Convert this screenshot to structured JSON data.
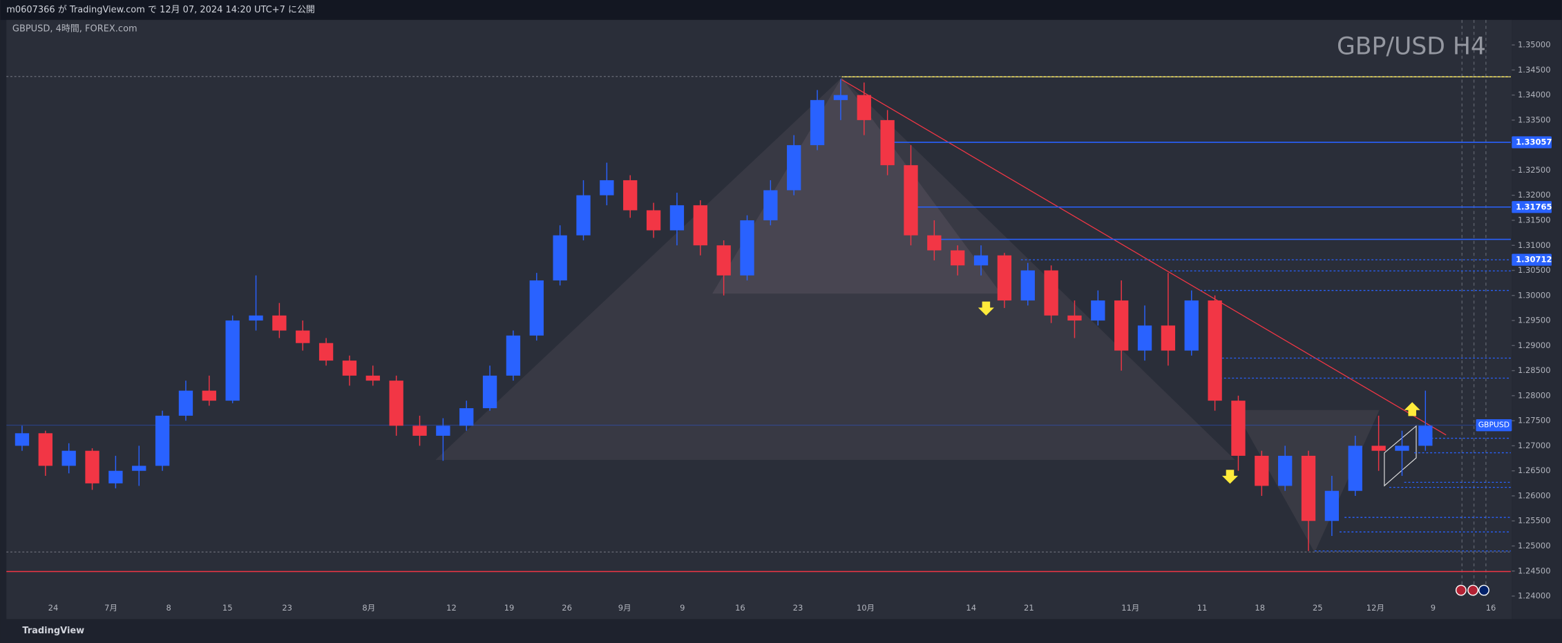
{
  "chart_data": {
    "type": "candlestick",
    "header": "m0607366 が TradingView.com で 12月 07, 2024 14:20 UTC+7 に公開",
    "symbol": "GBPUSD, 4時間, FOREX.com",
    "title": "GBP/USD H4",
    "brand": "TradingView",
    "up_color": "#2962ff",
    "down_color": "#f23645",
    "ohlc": [
      [
        1.27,
        1.274,
        1.269,
        1.2725
      ],
      [
        1.2725,
        1.273,
        1.264,
        1.266
      ],
      [
        1.266,
        1.2705,
        1.2645,
        1.269
      ],
      [
        1.269,
        1.2695,
        1.2612,
        1.2625
      ],
      [
        1.2625,
        1.268,
        1.2615,
        1.265
      ],
      [
        1.265,
        1.27,
        1.262,
        1.266
      ],
      [
        1.266,
        1.277,
        1.265,
        1.276
      ],
      [
        1.276,
        1.283,
        1.275,
        1.281
      ],
      [
        1.281,
        1.284,
        1.278,
        1.279
      ],
      [
        1.279,
        1.296,
        1.2785,
        1.295
      ],
      [
        1.295,
        1.304,
        1.293,
        1.296
      ],
      [
        1.296,
        1.2985,
        1.2915,
        1.293
      ],
      [
        1.293,
        1.295,
        1.289,
        1.2905
      ],
      [
        1.2905,
        1.2915,
        1.286,
        1.287
      ],
      [
        1.287,
        1.288,
        1.282,
        1.284
      ],
      [
        1.284,
        1.286,
        1.282,
        1.283
      ],
      [
        1.283,
        1.284,
        1.272,
        1.274
      ],
      [
        1.274,
        1.276,
        1.27,
        1.272
      ],
      [
        1.272,
        1.2755,
        1.267,
        1.274
      ],
      [
        1.274,
        1.279,
        1.273,
        1.2775
      ],
      [
        1.2775,
        1.286,
        1.277,
        1.284
      ],
      [
        1.284,
        1.293,
        1.283,
        1.292
      ],
      [
        1.292,
        1.3045,
        1.291,
        1.303
      ],
      [
        1.303,
        1.314,
        1.302,
        1.312
      ],
      [
        1.312,
        1.323,
        1.311,
        1.32
      ],
      [
        1.32,
        1.3265,
        1.318,
        1.323
      ],
      [
        1.323,
        1.324,
        1.3155,
        1.317
      ],
      [
        1.317,
        1.3185,
        1.3115,
        1.313
      ],
      [
        1.313,
        1.3205,
        1.31,
        1.318
      ],
      [
        1.318,
        1.319,
        1.308,
        1.31
      ],
      [
        1.31,
        1.311,
        1.3,
        1.304
      ],
      [
        1.304,
        1.316,
        1.303,
        1.315
      ],
      [
        1.315,
        1.323,
        1.314,
        1.321
      ],
      [
        1.321,
        1.332,
        1.32,
        1.33
      ],
      [
        1.33,
        1.341,
        1.329,
        1.339
      ],
      [
        1.339,
        1.3432,
        1.335,
        1.34
      ],
      [
        1.34,
        1.3425,
        1.332,
        1.335
      ],
      [
        1.335,
        1.337,
        1.324,
        1.326
      ],
      [
        1.326,
        1.33,
        1.31,
        1.312
      ],
      [
        1.312,
        1.315,
        1.307,
        1.309
      ],
      [
        1.309,
        1.31,
        1.304,
        1.306
      ],
      [
        1.306,
        1.31,
        1.304,
        1.308
      ],
      [
        1.308,
        1.3085,
        1.2975,
        1.299
      ],
      [
        1.299,
        1.3065,
        1.298,
        1.305
      ],
      [
        1.305,
        1.306,
        1.2945,
        1.296
      ],
      [
        1.296,
        1.299,
        1.2915,
        1.295
      ],
      [
        1.295,
        1.301,
        1.294,
        1.299
      ],
      [
        1.299,
        1.303,
        1.285,
        1.289
      ],
      [
        1.289,
        1.298,
        1.287,
        1.294
      ],
      [
        1.294,
        1.3045,
        1.286,
        1.289
      ],
      [
        1.289,
        1.301,
        1.288,
        1.299
      ],
      [
        1.299,
        1.3,
        1.277,
        1.279
      ],
      [
        1.279,
        1.28,
        1.265,
        1.268
      ],
      [
        1.268,
        1.269,
        1.26,
        1.262
      ],
      [
        1.262,
        1.27,
        1.261,
        1.268
      ],
      [
        1.268,
        1.269,
        1.249,
        1.255
      ],
      [
        1.255,
        1.264,
        1.252,
        1.261
      ],
      [
        1.261,
        1.272,
        1.26,
        1.27
      ],
      [
        1.27,
        1.276,
        1.265,
        1.269
      ],
      [
        1.269,
        1.273,
        1.264,
        1.27
      ],
      [
        1.27,
        1.281,
        1.269,
        1.274
      ]
    ],
    "last_label": "GBPUSD",
    "last_price": 1.2741,
    "levels": [
      {
        "value": 1.34364,
        "color": "#f7e55a",
        "style": "solid",
        "tag": false
      },
      {
        "value": 1.33057,
        "color": "#2962ff",
        "style": "solid",
        "tag": true
      },
      {
        "value": 1.31765,
        "color": "#2962ff",
        "style": "solid",
        "tag": true
      },
      {
        "value": 1.3112,
        "color": "#2962ff",
        "style": "solid",
        "tag": false
      },
      {
        "value": 1.30712,
        "color": "#2962ff",
        "style": "dotted",
        "tag": true
      },
      {
        "value": 1.3049,
        "color": "#2962ff",
        "style": "dotted",
        "tag": false
      },
      {
        "value": 1.301,
        "color": "#2962ff",
        "style": "dotted",
        "tag": false
      },
      {
        "value": 1.2875,
        "color": "#2962ff",
        "style": "dotted",
        "tag": false
      },
      {
        "value": 1.2835,
        "color": "#2962ff",
        "style": "dotted",
        "tag": false
      },
      {
        "value": 1.2715,
        "color": "#2962ff",
        "style": "dotted",
        "tag": false
      },
      {
        "value": 1.2686,
        "color": "#2962ff",
        "style": "dotted",
        "tag": false
      },
      {
        "value": 1.2627,
        "color": "#2962ff",
        "style": "dotted",
        "tag": false
      },
      {
        "value": 1.2617,
        "color": "#2962ff",
        "style": "dotted",
        "tag": false
      },
      {
        "value": 1.2557,
        "color": "#2962ff",
        "style": "dotted",
        "tag": false
      },
      {
        "value": 1.2528,
        "color": "#2962ff",
        "style": "dotted",
        "tag": false
      },
      {
        "value": 1.249,
        "color": "#2962ff",
        "style": "dotted",
        "tag": false
      },
      {
        "value": 1.2449,
        "color": "#f23645",
        "style": "solid",
        "tag": false
      },
      {
        "value": 1.3437,
        "color": "#6a6d78",
        "style": "dotted",
        "tag": false
      },
      {
        "value": 1.2488,
        "color": "#6a6d78",
        "style": "dotted",
        "tag": false
      }
    ],
    "ylim": [
      1.2358,
      1.3546
    ],
    "yticks": [
      {
        "value": 1.35,
        "label": "1.35000"
      },
      {
        "value": 1.345,
        "label": "1.34500"
      },
      {
        "value": 1.34,
        "label": "1.34000"
      },
      {
        "value": 1.335,
        "label": "1.33500"
      },
      {
        "value": 1.33,
        "label": "1.33000"
      },
      {
        "value": 1.325,
        "label": "1.32500"
      },
      {
        "value": 1.32,
        "label": "1.32000"
      },
      {
        "value": 1.315,
        "label": "1.31500"
      },
      {
        "value": 1.31,
        "label": "1.31000"
      },
      {
        "value": 1.305,
        "label": "1.30500"
      },
      {
        "value": 1.3,
        "label": "1.30000"
      },
      {
        "value": 1.295,
        "label": "1.29500"
      },
      {
        "value": 1.29,
        "label": "1.29000"
      },
      {
        "value": 1.285,
        "label": "1.28500"
      },
      {
        "value": 1.28,
        "label": "1.28000"
      },
      {
        "value": 1.275,
        "label": "1.27500"
      },
      {
        "value": 1.27,
        "label": "1.27000"
      },
      {
        "value": 1.265,
        "label": "1.26500"
      },
      {
        "value": 1.26,
        "label": "1.26000"
      },
      {
        "value": 1.255,
        "label": "1.25500"
      },
      {
        "value": 1.25,
        "label": "1.25000"
      },
      {
        "value": 1.245,
        "label": "1.24500"
      },
      {
        "value": 1.24,
        "label": "1.24000"
      }
    ],
    "xticks": [
      "24",
      "7月",
      "8",
      "15",
      "23",
      "8月",
      "12",
      "19",
      "26",
      "9月",
      "9",
      "16",
      "23",
      "10月",
      "14",
      "21",
      "11月",
      "11",
      "18",
      "25",
      "12月",
      "9",
      "16"
    ]
  }
}
